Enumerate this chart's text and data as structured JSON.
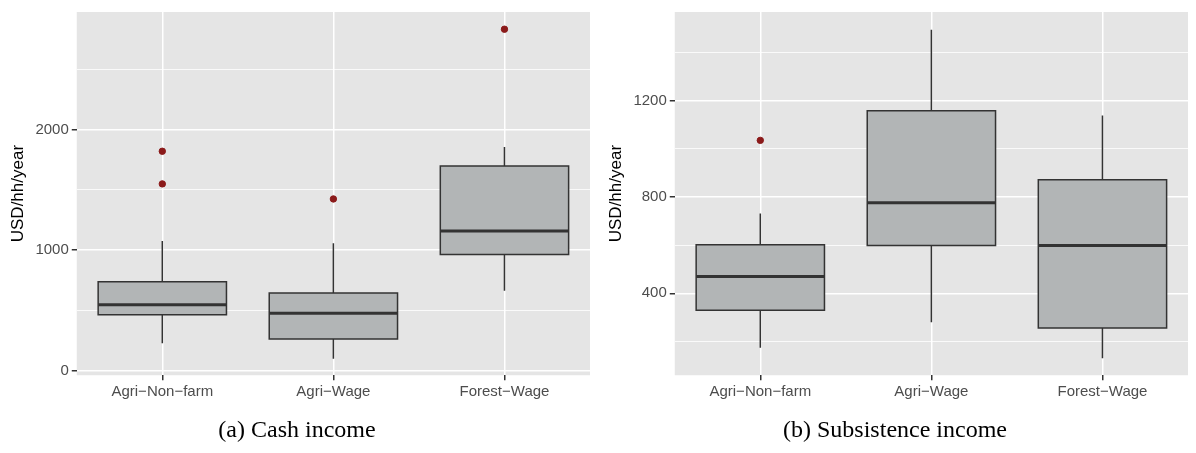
{
  "chart_data": [
    {
      "type": "box",
      "title": "(a) Cash income",
      "ylabel": "USD/hh/year",
      "categories": [
        "Agri−Non−farm",
        "Agri−Wage",
        "Forest−Wage"
      ],
      "series": [
        {
          "color": "#b2b5b6",
          "boxes": [
            {
              "low": 226,
              "q1": 461,
              "median": 545,
              "q3": 735,
              "high": 1074,
              "outliers": [
                1548,
                1819
              ]
            },
            {
              "low": 97,
              "q1": 261,
              "median": 474,
              "q3": 642,
              "high": 1055,
              "outliers": [
                1423
              ]
            },
            {
              "low": 661,
              "q1": 961,
              "median": 1158,
              "q3": 1697,
              "high": 1855,
              "outliers": [
                2832
              ]
            }
          ]
        }
      ],
      "ylim": [
        -40,
        2975
      ],
      "yticks": [
        0,
        {
          "value": 500,
          "label": null
        },
        1000,
        {
          "value": 1500,
          "label": null
        },
        2000,
        {
          "value": 2500,
          "label": null
        }
      ],
      "grid": true
    },
    {
      "type": "box",
      "title": "(b) Subsistence income",
      "ylabel": "USD/hh/year",
      "categories": [
        "Agri−Non−farm",
        "Agri−Wage",
        "Forest−Wage"
      ],
      "series": [
        {
          "color": "#b2b5b6",
          "boxes": [
            {
              "low": 174,
              "q1": 330,
              "median": 470,
              "q3": 602,
              "high": 731,
              "outliers": [
                1035
              ]
            },
            {
              "low": 280,
              "q1": 598,
              "median": 776,
              "q3": 1158,
              "high": 1494
            },
            {
              "low": 130,
              "q1": 256,
              "median": 598,
              "q3": 872,
              "high": 1138
            }
          ]
        }
      ],
      "ylim": [
        60,
        1568
      ],
      "yticks": [
        {
          "value": 200,
          "label": null
        },
        400,
        {
          "value": 600,
          "label": null
        },
        800,
        {
          "value": 1000,
          "label": null
        },
        1200,
        {
          "value": 1400,
          "label": null
        }
      ],
      "grid": true
    }
  ]
}
